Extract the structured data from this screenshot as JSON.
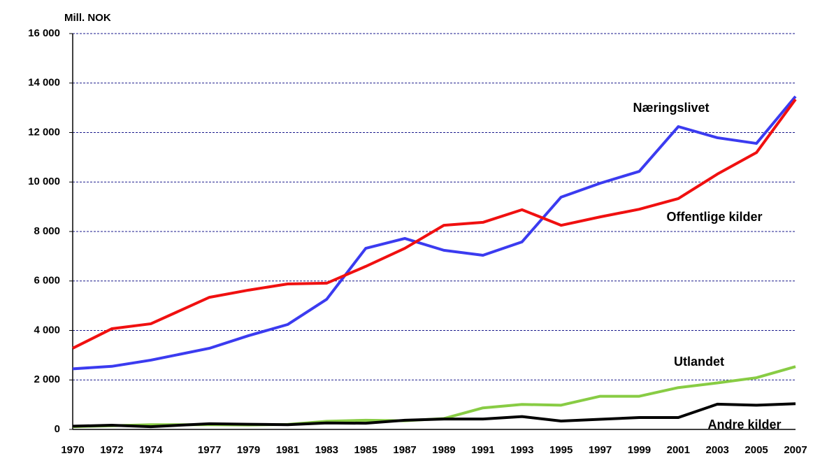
{
  "chart_data": {
    "type": "line",
    "y_label": "Mill. NOK",
    "x": [
      1970,
      1972,
      1974,
      1977,
      1979,
      1981,
      1983,
      1985,
      1987,
      1989,
      1991,
      1993,
      1995,
      1997,
      1999,
      2001,
      2003,
      2005,
      2007
    ],
    "xlim": [
      1970,
      2007
    ],
    "xticks": [
      1970,
      1972,
      1974,
      1977,
      1979,
      1981,
      1983,
      1985,
      1987,
      1989,
      1991,
      1993,
      1995,
      1997,
      1999,
      2001,
      2003,
      2005,
      2007
    ],
    "ylim": [
      0,
      16000
    ],
    "yticks": [
      0,
      {
        "value": 2000,
        "label": "2 000"
      },
      {
        "value": 4000,
        "label": "4 000"
      },
      {
        "value": 6000,
        "label": "6 000"
      },
      {
        "value": 8000,
        "label": "8 000"
      },
      {
        "value": 10000,
        "label": "10 000"
      },
      {
        "value": 12000,
        "label": "12 000"
      },
      {
        "value": 14000,
        "label": "14 000"
      },
      {
        "value": 16000,
        "label": "16 000"
      }
    ],
    "grid": true,
    "series": [
      {
        "name": "Næringslivet",
        "color": "#3b3bf0",
        "values": [
          2450,
          2550,
          2800,
          3280,
          3790,
          4240,
          5260,
          7320,
          7720,
          7240,
          7040,
          7580,
          9390,
          9950,
          10430,
          12240,
          11790,
          11560,
          13460
        ]
      },
      {
        "name": "Offentlige kilder",
        "color": "#f01010",
        "values": [
          3280,
          4070,
          4270,
          5340,
          5630,
          5880,
          5910,
          6590,
          7320,
          8250,
          8370,
          8880,
          8250,
          8590,
          8900,
          9330,
          10320,
          11190,
          13340
        ]
      },
      {
        "name": "Utlandet",
        "color": "#88cc44",
        "values": [
          110,
          150,
          190,
          190,
          180,
          200,
          330,
          370,
          350,
          440,
          870,
          1010,
          980,
          1340,
          1340,
          1690,
          1880,
          2090,
          2540
        ]
      },
      {
        "name": "Andre kilder",
        "color": "#000000",
        "values": [
          130,
          170,
          110,
          230,
          210,
          190,
          260,
          250,
          370,
          420,
          420,
          520,
          340,
          410,
          480,
          480,
          1020,
          980,
          1040
        ]
      }
    ]
  }
}
